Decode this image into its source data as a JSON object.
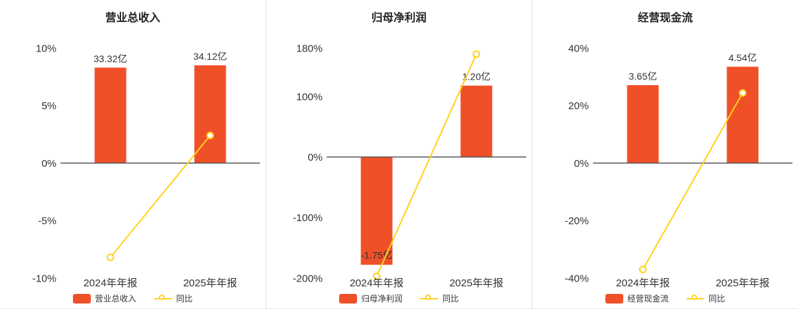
{
  "colors": {
    "bar": "#f05028",
    "line": "#ffd21e",
    "zero_axis": "#555555",
    "tick_text": "#333333",
    "value_text": "#333333",
    "category_text": "#333333",
    "title_text": "#222222",
    "divider": "#e0e0e0",
    "marker_fill": "#ffffff"
  },
  "chart_data": [
    {
      "type": "bar+line",
      "title": "营业总收入",
      "categories": [
        "2024年年报",
        "2025年年报"
      ],
      "ylim": [
        -10,
        10
      ],
      "y_ticks": [
        10,
        5,
        0,
        -5,
        -10
      ],
      "y_tick_labels": [
        "10%",
        "5%",
        "0%",
        "-5%",
        "-10%"
      ],
      "grid": false,
      "legend_position": "bottom",
      "bar_series": {
        "name": "营业总收入",
        "value_labels": [
          "33.32亿",
          "34.12亿"
        ],
        "plotted_pct": [
          8.3,
          8.5
        ]
      },
      "line_series": {
        "name": "同比",
        "values_pct": [
          -8.2,
          2.4
        ]
      }
    },
    {
      "type": "bar+line",
      "title": "归母净利润",
      "categories": [
        "2024年年报",
        "2025年年报"
      ],
      "ylim": [
        -200,
        180
      ],
      "y_ticks": [
        180,
        100,
        0,
        -100,
        -200
      ],
      "y_tick_labels": [
        "180%",
        "100%",
        "0%",
        "-100%",
        "-200%"
      ],
      "grid": false,
      "legend_position": "bottom",
      "bar_series": {
        "name": "归母净利润",
        "value_labels": [
          "-1.75亿",
          "1.20亿"
        ],
        "plotted_pct": [
          -178,
          118
        ]
      },
      "line_series": {
        "name": "同比",
        "values_pct": [
          -197,
          170
        ]
      }
    },
    {
      "type": "bar+line",
      "title": "经营现金流",
      "categories": [
        "2024年年报",
        "2025年年报"
      ],
      "ylim": [
        -40,
        40
      ],
      "y_ticks": [
        40,
        20,
        0,
        -20,
        -40
      ],
      "y_tick_labels": [
        "40%",
        "20%",
        "0%",
        "-20%",
        "-40%"
      ],
      "grid": false,
      "legend_position": "bottom",
      "bar_series": {
        "name": "经营现金流",
        "value_labels": [
          "3.65亿",
          "4.54亿"
        ],
        "plotted_pct": [
          27.1,
          33.5
        ]
      },
      "line_series": {
        "name": "同比",
        "values_pct": [
          -37,
          24.4
        ]
      }
    }
  ]
}
